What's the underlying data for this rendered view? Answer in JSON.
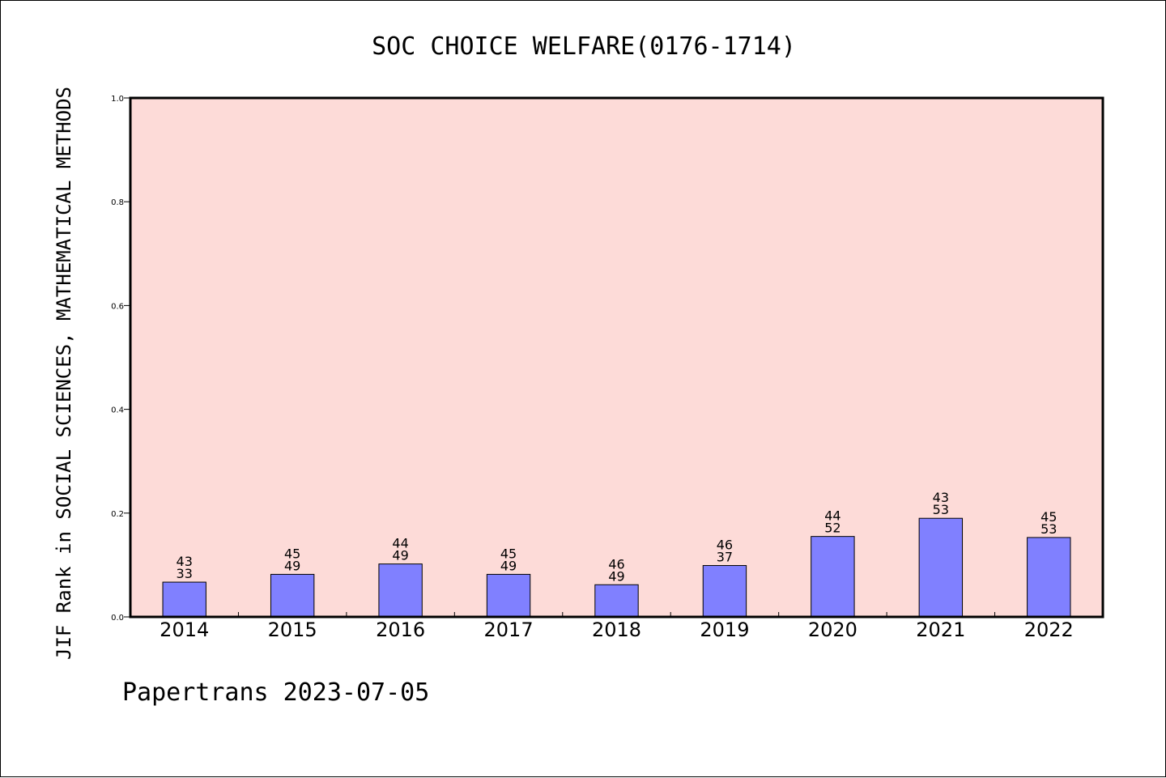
{
  "chart_data": {
    "type": "bar",
    "title": "SOC CHOICE WELFARE(0176-1714)",
    "ylabel": "JIF Rank in SOCIAL SCIENCES, MATHEMATICAL METHODS",
    "xlabel": "",
    "footer": "Papertrans 2023-07-05",
    "categories": [
      "2014",
      "2015",
      "2016",
      "2017",
      "2018",
      "2019",
      "2020",
      "2021",
      "2022"
    ],
    "values": [
      0.067,
      0.082,
      0.102,
      0.082,
      0.062,
      0.099,
      0.155,
      0.19,
      0.153
    ],
    "labels_top": [
      "43",
      "45",
      "44",
      "45",
      "46",
      "46",
      "44",
      "43",
      "45"
    ],
    "labels_bottom": [
      "33",
      "49",
      "49",
      "49",
      "49",
      "37",
      "52",
      "53",
      "53"
    ],
    "ylim": [
      0,
      1.0
    ],
    "yticks": [
      "0.0",
      "0.2",
      "0.4",
      "0.6",
      "0.8",
      "1.0"
    ],
    "grid": false,
    "colors": {
      "bar_fill": "#8080ff",
      "bar_stroke": "#000000",
      "plot_background": "#fddbd8",
      "axis": "#000000"
    }
  }
}
